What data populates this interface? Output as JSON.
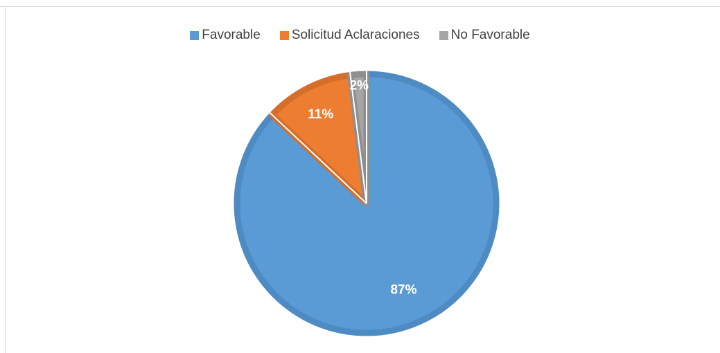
{
  "chart_data": {
    "type": "pie",
    "title": "",
    "legend_position": "top",
    "categories": [
      "Favorable",
      "Solicitud Aclaraciones",
      "No Favorable"
    ],
    "values": [
      87,
      11,
      2
    ],
    "labels": [
      "87%",
      "11%",
      "2%"
    ],
    "colors": [
      "#5b9bd5",
      "#ed7d31",
      "#a5a5a5"
    ],
    "edge_colors": [
      "#4f8bc3",
      "#d46e2a",
      "#8f8f8f"
    ]
  }
}
